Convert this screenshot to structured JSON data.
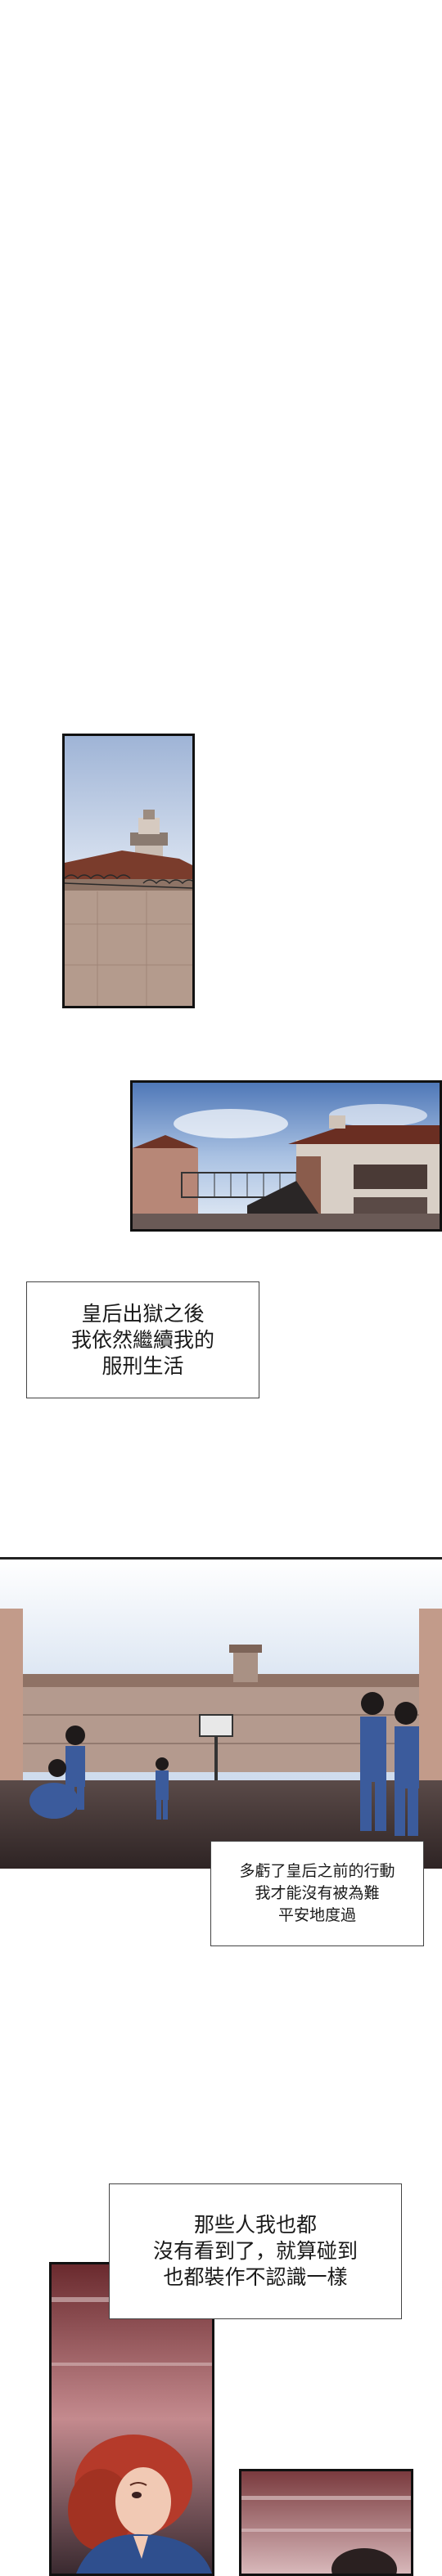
{
  "captions": {
    "release": {
      "lines": [
        "皇后出獄之後",
        "我依然繼續我的",
        "服刑生活"
      ]
    },
    "thanks": {
      "lines": [
        "多虧了皇后之前的行動",
        "我才能沒有被為難",
        "平安地度過"
      ]
    },
    "ignore": {
      "lines": [
        "那些人我也都",
        "沒有看到了，就算碰到",
        "也都裝作不認識一樣"
      ]
    }
  },
  "colors": {
    "sky": "#c9d6ea",
    "prison_wall": "#b99a8e",
    "yard_floor": "#3a2e2e",
    "uniform": "#3a5a9a",
    "hair_red": "#b53a2a",
    "border": "#111111"
  }
}
